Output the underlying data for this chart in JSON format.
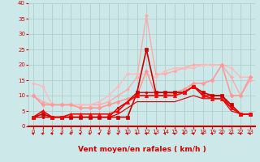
{
  "xlabel": "Vent moyen/en rafales ( km/h )",
  "xlim": [
    -0.5,
    23.5
  ],
  "ylim": [
    0,
    40
  ],
  "xticks": [
    0,
    1,
    2,
    3,
    4,
    5,
    6,
    7,
    8,
    9,
    10,
    11,
    12,
    13,
    14,
    15,
    16,
    17,
    18,
    19,
    20,
    21,
    22,
    23
  ],
  "yticks": [
    0,
    5,
    10,
    15,
    20,
    25,
    30,
    35,
    40
  ],
  "bg_color": "#cce8e8",
  "grid_color": "#aacccc",
  "lines": [
    {
      "x": [
        0,
        1,
        2,
        3,
        4,
        5,
        6,
        7,
        8,
        9,
        10,
        11,
        12,
        13,
        14,
        15,
        16,
        17,
        18,
        19,
        20,
        21,
        22,
        23
      ],
      "y": [
        3,
        4,
        3,
        3,
        3,
        3,
        3,
        3,
        3,
        3,
        3,
        11,
        25,
        11,
        11,
        11,
        11,
        13,
        11,
        10,
        10,
        7,
        4,
        4
      ],
      "color": "#cc0000",
      "lw": 1.2,
      "marker": "s",
      "ms": 2.5,
      "zorder": 5
    },
    {
      "x": [
        0,
        1,
        2,
        3,
        4,
        5,
        6,
        7,
        8,
        9,
        10,
        11,
        12,
        13,
        14,
        15,
        16,
        17,
        18,
        19,
        20,
        21,
        22,
        23
      ],
      "y": [
        3,
        3,
        3,
        3,
        3,
        3,
        3,
        3,
        3,
        6,
        8,
        11,
        11,
        11,
        11,
        11,
        11,
        13,
        10,
        10,
        10,
        6,
        4,
        4
      ],
      "color": "#cc0000",
      "lw": 1.0,
      "marker": "s",
      "ms": 2.0,
      "zorder": 4
    },
    {
      "x": [
        0,
        1,
        2,
        3,
        4,
        5,
        6,
        7,
        8,
        9,
        10,
        11,
        12,
        13,
        14,
        15,
        16,
        17,
        18,
        19,
        20,
        21,
        22,
        23
      ],
      "y": [
        10,
        7,
        7,
        7,
        7,
        6,
        6,
        6,
        7,
        8,
        9,
        10,
        18,
        10,
        10,
        11,
        12,
        14,
        14,
        15,
        20,
        10,
        10,
        16
      ],
      "color": "#ff9999",
      "lw": 1.2,
      "marker": "D",
      "ms": 2.5,
      "zorder": 3
    },
    {
      "x": [
        0,
        1,
        2,
        3,
        4,
        5,
        6,
        7,
        8,
        9,
        10,
        11,
        12,
        13,
        14,
        15,
        16,
        17,
        18,
        19,
        20,
        21,
        22,
        23
      ],
      "y": [
        3,
        3,
        3,
        3,
        3,
        3,
        3,
        3,
        3,
        4,
        6,
        8,
        8,
        8,
        8,
        8,
        9,
        10,
        9,
        9,
        9,
        5,
        4,
        4
      ],
      "color": "#cc0000",
      "lw": 0.8,
      "marker": null,
      "ms": 0,
      "zorder": 3
    },
    {
      "x": [
        0,
        1,
        2,
        3,
        4,
        5,
        6,
        7,
        8,
        9,
        10,
        11,
        12,
        13,
        14,
        15,
        16,
        17,
        18,
        19,
        20,
        21,
        22,
        23
      ],
      "y": [
        10,
        8,
        7,
        7,
        7,
        7,
        7,
        7,
        8,
        10,
        12,
        16,
        36,
        17,
        17,
        18,
        19,
        20,
        20,
        20,
        20,
        16,
        10,
        15
      ],
      "color": "#ffaaaa",
      "lw": 1.0,
      "marker": "D",
      "ms": 2.0,
      "zorder": 2
    },
    {
      "x": [
        0,
        1,
        2,
        3,
        4,
        5,
        6,
        7,
        8,
        9,
        10,
        11,
        12,
        13,
        14,
        15,
        16,
        17,
        18,
        19,
        20,
        21,
        22,
        23
      ],
      "y": [
        3,
        5,
        3,
        3,
        4,
        4,
        4,
        4,
        4,
        5,
        8,
        10,
        10,
        10,
        10,
        10,
        11,
        13,
        10,
        9,
        9,
        6,
        4,
        4
      ],
      "color": "#ff0000",
      "lw": 1.2,
      "marker": "^",
      "ms": 3,
      "zorder": 6
    },
    {
      "x": [
        0,
        1,
        2,
        3,
        4,
        5,
        6,
        7,
        8,
        9,
        10,
        11,
        12,
        13,
        14,
        15,
        16,
        17,
        18,
        19,
        20,
        21,
        22,
        23
      ],
      "y": [
        14,
        13,
        7,
        7,
        7,
        7,
        7,
        8,
        10,
        13,
        17,
        17,
        17,
        16,
        18,
        19,
        19,
        19,
        20,
        20,
        20,
        19,
        16,
        16
      ],
      "color": "#ffbbbb",
      "lw": 1.0,
      "marker": "D",
      "ms": 2.0,
      "zorder": 2
    }
  ],
  "arrow_color": "#cc0000",
  "tick_color": "#cc0000",
  "xlabel_color": "#cc0000",
  "xlabel_fontsize": 6.5,
  "tick_fontsize": 5
}
